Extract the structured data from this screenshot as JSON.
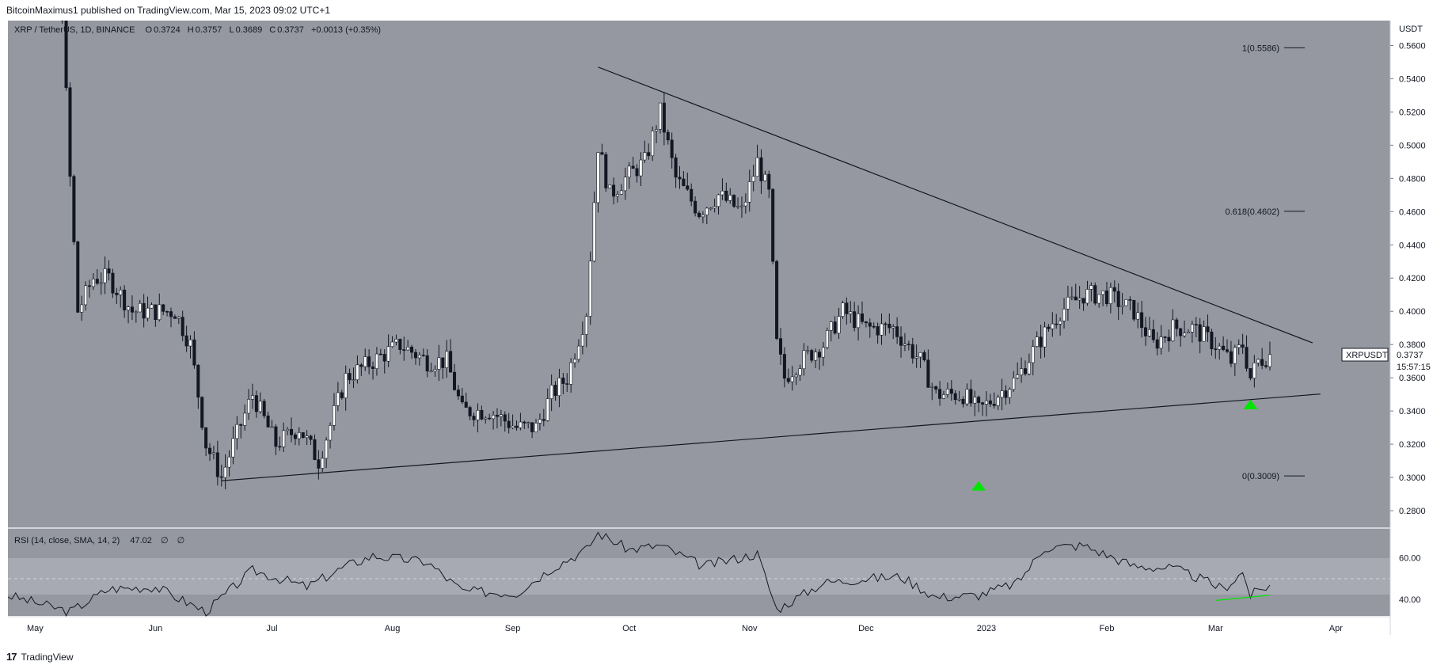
{
  "header": {
    "publisher": "BitcoinMaximus1",
    "text": "BitcoinMaximus1 published on TradingView.com, Mar 15, 2023 09:02 UTC+1"
  },
  "legend": {
    "symbol": "XRP / TetherUS, 1D, BINANCE",
    "o_label": "O",
    "o_value": "0.3724",
    "h_label": "H",
    "h_value": "0.3757",
    "l_label": "L",
    "l_value": "0.3689",
    "c_label": "C",
    "c_value": "0.3737",
    "change": "+0.0013 (+0.35%)"
  },
  "price_scale": {
    "unit": "USDT",
    "ticks": [
      "0.5600",
      "0.5400",
      "0.5200",
      "0.5000",
      "0.4800",
      "0.4600",
      "0.4400",
      "0.4200",
      "0.4000",
      "0.3800",
      "0.3600",
      "0.3400",
      "0.3200",
      "0.3000",
      "0.2800"
    ]
  },
  "last_price": {
    "symbol": "XRPUSDT",
    "price": "0.3737",
    "countdown": "15:57:15"
  },
  "fib": [
    {
      "label": "1(0.5586)",
      "value": 0.5586
    },
    {
      "label": "0.618(0.4602)",
      "value": 0.4602
    },
    {
      "label": "0(0.3009)",
      "value": 0.3009
    }
  ],
  "rsi": {
    "legend": "RSI (14, close, SMA, 14, 2)",
    "value": "47.02",
    "extra1": "∅",
    "extra2": "∅",
    "ticks": [
      "60.00",
      "40.00"
    ]
  },
  "time_axis": [
    "May",
    "Jun",
    "Jul",
    "Aug",
    "Sep",
    "Oct",
    "Nov",
    "Dec",
    "2023",
    "Feb",
    "Mar",
    "Apr"
  ],
  "footer": {
    "brand": "TradingView"
  },
  "colors": {
    "chart_bg": "#9598a1",
    "rsi_bg": "#9598a1",
    "candle": "#131722",
    "trendline": "#131722",
    "arrow": "#00e600",
    "divergence": "#00e600"
  },
  "chart_data": {
    "type": "candlestick",
    "title": "XRP / TetherUS, 1D, BINANCE",
    "ylabel": "USDT",
    "ylim": [
      0.27,
      0.575
    ],
    "x_range": [
      "2022-04-24",
      "2023-04-15"
    ],
    "trendlines": [
      {
        "name": "descending resistance",
        "from": [
          "2022-09-23",
          0.547
        ],
        "to": [
          "2023-03-26",
          0.381
        ]
      },
      {
        "name": "ascending support",
        "from": [
          "2022-06-18",
          0.298
        ],
        "to": [
          "2023-03-28",
          0.3502
        ]
      }
    ],
    "markers": [
      {
        "type": "up-arrow",
        "date": "2022-12-30",
        "value": 0.294
      },
      {
        "type": "up-arrow",
        "date": "2023-03-10",
        "value": 0.343
      }
    ],
    "price_path": [
      [
        "2022-04-24",
        0.585
      ],
      [
        "2022-05-05",
        0.62
      ],
      [
        "2022-05-08",
        0.58
      ],
      [
        "2022-05-10",
        0.48
      ],
      [
        "2022-05-12",
        0.4
      ],
      [
        "2022-05-16",
        0.42
      ],
      [
        "2022-05-20",
        0.42
      ],
      [
        "2022-05-26",
        0.4
      ],
      [
        "2022-06-01",
        0.4
      ],
      [
        "2022-06-06",
        0.4
      ],
      [
        "2022-06-10",
        0.38
      ],
      [
        "2022-06-14",
        0.32
      ],
      [
        "2022-06-18",
        0.3
      ],
      [
        "2022-06-21",
        0.32
      ],
      [
        "2022-06-26",
        0.35
      ],
      [
        "2022-07-02",
        0.32
      ],
      [
        "2022-07-08",
        0.33
      ],
      [
        "2022-07-13",
        0.31
      ],
      [
        "2022-07-20",
        0.36
      ],
      [
        "2022-07-27",
        0.37
      ],
      [
        "2022-08-03",
        0.38
      ],
      [
        "2022-08-10",
        0.37
      ],
      [
        "2022-08-15",
        0.37
      ],
      [
        "2022-08-19",
        0.34
      ],
      [
        "2022-08-26",
        0.34
      ],
      [
        "2022-09-02",
        0.33
      ],
      [
        "2022-09-07",
        0.33
      ],
      [
        "2022-09-11",
        0.35
      ],
      [
        "2022-09-15",
        0.36
      ],
      [
        "2022-09-20",
        0.4
      ],
      [
        "2022-09-23",
        0.5
      ],
      [
        "2022-09-26",
        0.47
      ],
      [
        "2022-09-30",
        0.48
      ],
      [
        "2022-10-05",
        0.49
      ],
      [
        "2022-10-09",
        0.52
      ],
      [
        "2022-10-13",
        0.48
      ],
      [
        "2022-10-19",
        0.46
      ],
      [
        "2022-10-24",
        0.47
      ],
      [
        "2022-10-30",
        0.46
      ],
      [
        "2022-11-03",
        0.49
      ],
      [
        "2022-11-06",
        0.47
      ],
      [
        "2022-11-08",
        0.38
      ],
      [
        "2022-11-10",
        0.36
      ],
      [
        "2022-11-14",
        0.37
      ],
      [
        "2022-11-20",
        0.38
      ],
      [
        "2022-11-25",
        0.4
      ],
      [
        "2022-12-01",
        0.39
      ],
      [
        "2022-12-08",
        0.39
      ],
      [
        "2022-12-15",
        0.37
      ],
      [
        "2022-12-19",
        0.35
      ],
      [
        "2022-12-26",
        0.35
      ],
      [
        "2022-12-30",
        0.34
      ],
      [
        "2023-01-04",
        0.35
      ],
      [
        "2023-01-09",
        0.36
      ],
      [
        "2023-01-14",
        0.38
      ],
      [
        "2023-01-20",
        0.4
      ],
      [
        "2023-01-26",
        0.41
      ],
      [
        "2023-02-01",
        0.41
      ],
      [
        "2023-02-08",
        0.4
      ],
      [
        "2023-02-13",
        0.38
      ],
      [
        "2023-02-18",
        0.39
      ],
      [
        "2023-02-23",
        0.39
      ],
      [
        "2023-03-01",
        0.38
      ],
      [
        "2023-03-05",
        0.37
      ],
      [
        "2023-03-08",
        0.38
      ],
      [
        "2023-03-10",
        0.36
      ],
      [
        "2023-03-12",
        0.37
      ],
      [
        "2023-03-15",
        0.3737
      ]
    ],
    "rsi_series": {
      "name": "RSI (14, close, SMA, 14, 2)",
      "ylim": [
        32,
        74
      ],
      "reference_line": 50,
      "values": [
        [
          "2022-04-24",
          42
        ],
        [
          "2022-05-10",
          34
        ],
        [
          "2022-05-20",
          45
        ],
        [
          "2022-06-01",
          46
        ],
        [
          "2022-06-14",
          34
        ],
        [
          "2022-06-26",
          54
        ],
        [
          "2022-07-10",
          46
        ],
        [
          "2022-07-20",
          56
        ],
        [
          "2022-07-27",
          61
        ],
        [
          "2022-08-10",
          58
        ],
        [
          "2022-08-19",
          44
        ],
        [
          "2022-09-02",
          43
        ],
        [
          "2022-09-11",
          55
        ],
        [
          "2022-09-20",
          64
        ],
        [
          "2022-09-23",
          72
        ],
        [
          "2022-10-01",
          64
        ],
        [
          "2022-10-09",
          66
        ],
        [
          "2022-10-20",
          56
        ],
        [
          "2022-11-03",
          62
        ],
        [
          "2022-11-08",
          35
        ],
        [
          "2022-11-20",
          48
        ],
        [
          "2022-12-01",
          50
        ],
        [
          "2022-12-10",
          51
        ],
        [
          "2022-12-19",
          41
        ],
        [
          "2022-12-30",
          42
        ],
        [
          "2023-01-09",
          48
        ],
        [
          "2023-01-16",
          65
        ],
        [
          "2023-01-26",
          66
        ],
        [
          "2023-02-08",
          56
        ],
        [
          "2023-02-18",
          55
        ],
        [
          "2023-02-25",
          50
        ],
        [
          "2023-03-03",
          45
        ],
        [
          "2023-03-08",
          53
        ],
        [
          "2023-03-10",
          42
        ],
        [
          "2023-03-15",
          47
        ]
      ],
      "divergence_line": {
        "from": [
          "2023-03-01",
          39.5
        ],
        "to": [
          "2023-03-15",
          42
        ]
      }
    }
  }
}
